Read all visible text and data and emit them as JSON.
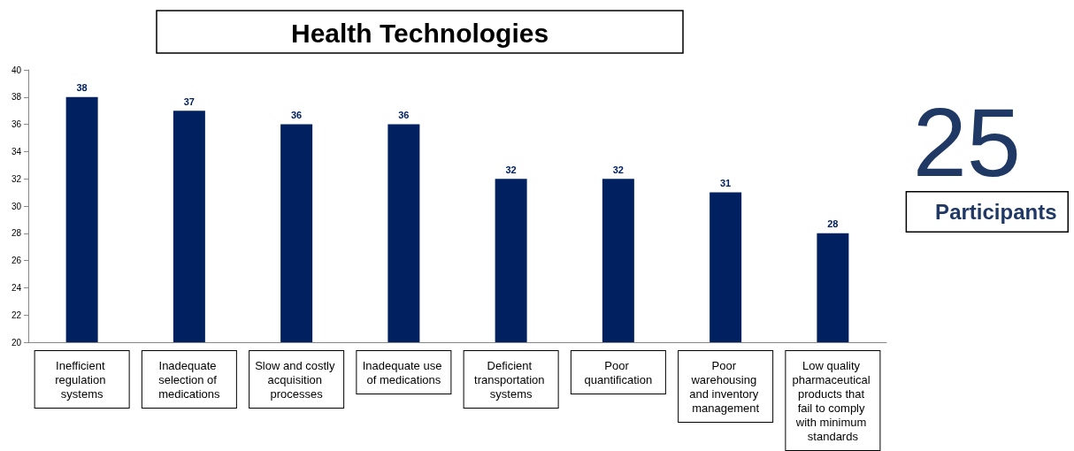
{
  "chart_data": {
    "type": "bar",
    "title": "Health Technologies",
    "categories": [
      "Inefficient regulation systems",
      "Inadequate selection of medications",
      "Slow and costly acquisition processes",
      "Inadequate use of medications",
      "Deficient transportation systems",
      "Poor quantification",
      "Poor warehousing and inventory management",
      "Low quality pharmaceutical products that fail to comply with minimum standards"
    ],
    "values": [
      38,
      37,
      36,
      36,
      32,
      32,
      31,
      28
    ],
    "color": "#002060",
    "ylim": [
      20,
      40
    ],
    "yticks": [
      20,
      22,
      24,
      26,
      28,
      30,
      32,
      34,
      36,
      38,
      40
    ],
    "grid": false,
    "data_labels": true,
    "annotations": [
      "25",
      "Participants"
    ]
  }
}
